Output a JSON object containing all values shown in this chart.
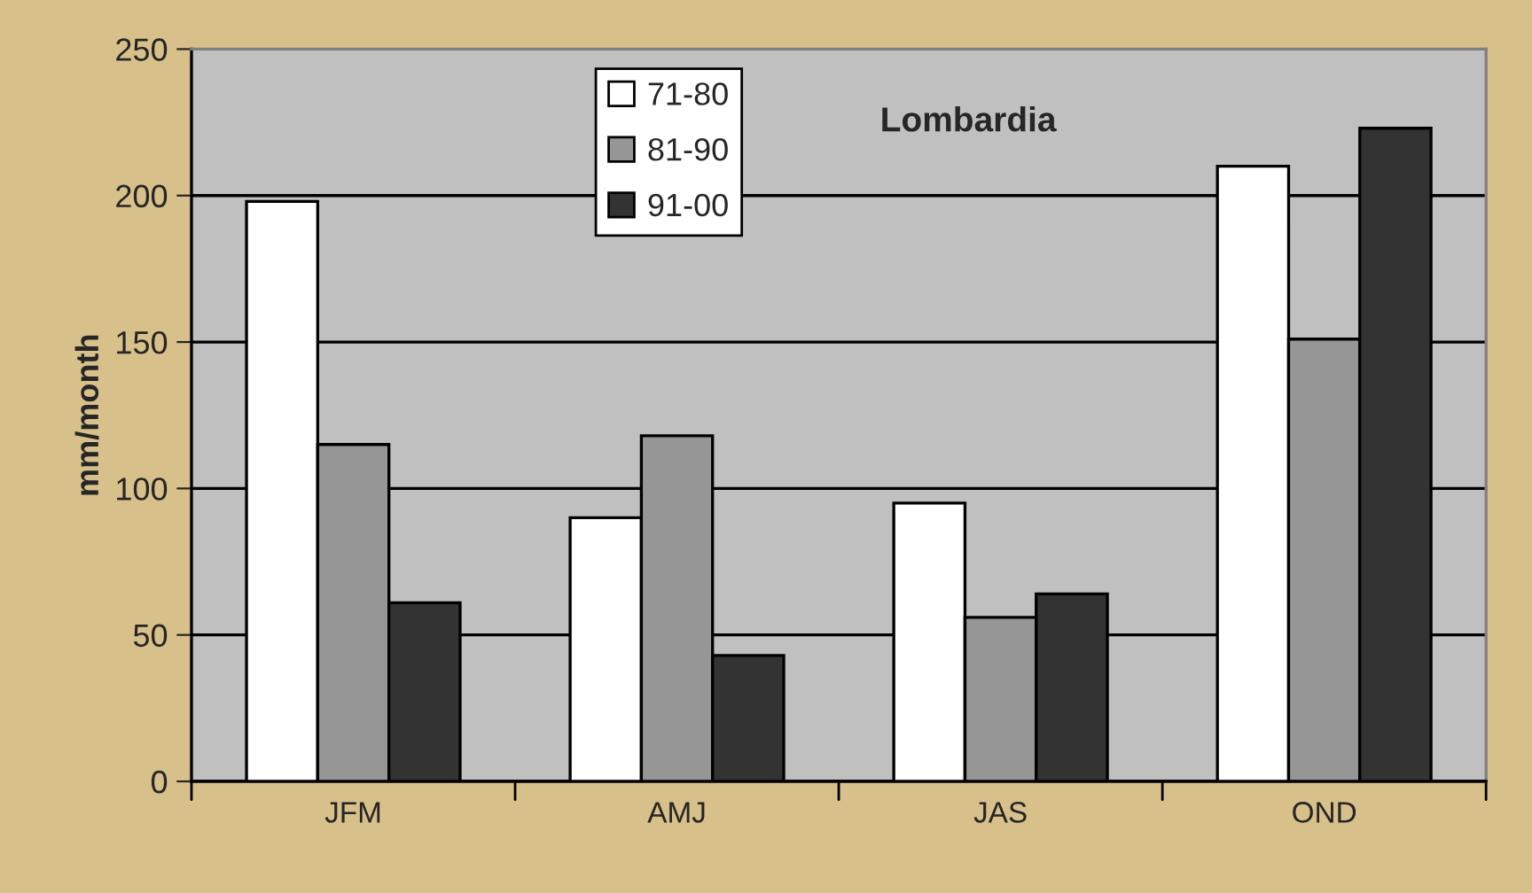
{
  "chart_data": {
    "type": "bar",
    "title": "Lombardia",
    "ylabel": "mm/month",
    "categories": [
      "JFM",
      "AMJ",
      "JAS",
      "OND"
    ],
    "series": [
      {
        "name": "71-80",
        "color": "#ffffff",
        "values": [
          198,
          90,
          95,
          210
        ]
      },
      {
        "name": "81-90",
        "color": "#969696",
        "values": [
          115,
          118,
          56,
          151
        ]
      },
      {
        "name": "91-00",
        "color": "#333333",
        "values": [
          61,
          43,
          64,
          223
        ]
      }
    ],
    "ylim": [
      0,
      250
    ],
    "yticks": [
      0,
      50,
      100,
      150,
      200,
      250
    ],
    "grid": "y",
    "legend": "top"
  }
}
